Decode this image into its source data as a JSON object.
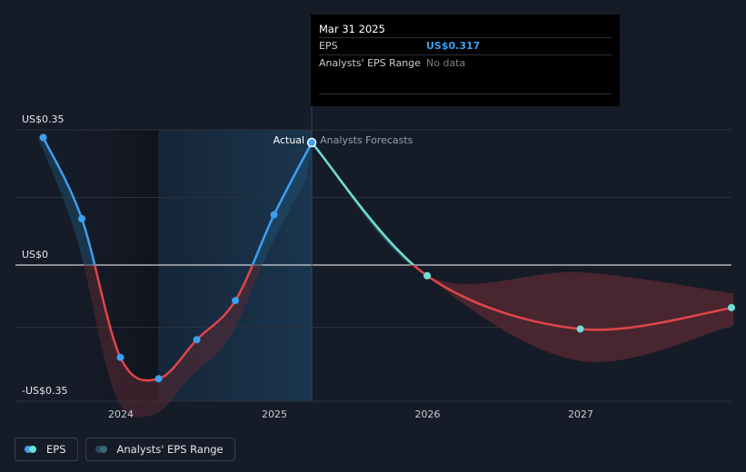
{
  "tooltip": {
    "date": "Mar 31 2025",
    "eps_label": "EPS",
    "eps_value": "US$0.317",
    "range_label": "Analysts' EPS Range",
    "range_value": "No data"
  },
  "chart_data": {
    "type": "line",
    "title": "",
    "ylim": [
      -0.35,
      0.35
    ],
    "y_tick_labels": [
      "US$0.35",
      "US$0",
      "-US$0.35"
    ],
    "x_tick_labels": [
      "2024",
      "2025",
      "2026",
      "2027"
    ],
    "divider_labels": {
      "actual": "Actual",
      "forecast": "Analysts Forecasts"
    },
    "series": [
      {
        "name": "EPS",
        "kind": "actual",
        "points": [
          {
            "x": "2023-06-30",
            "y": 0.33
          },
          {
            "x": "2023-09-30",
            "y": 0.12
          },
          {
            "x": "2023-12-31",
            "y": -0.26
          },
          {
            "x": "2024-03-31",
            "y": -0.32
          },
          {
            "x": "2024-06-30",
            "y": -0.21
          },
          {
            "x": "2024-09-30",
            "y": -0.1
          },
          {
            "x": "2024-12-31",
            "y": 0.13
          },
          {
            "x": "2025-03-31",
            "y": 0.317
          }
        ]
      },
      {
        "name": "EPS",
        "kind": "forecast",
        "points": [
          {
            "x": "2025-03-31",
            "y": 0.317
          },
          {
            "x": "2025-12-31",
            "y": -0.03
          },
          {
            "x": "2026-12-31",
            "y": -0.18
          },
          {
            "x": "2027-12-31",
            "y": -0.12
          }
        ]
      },
      {
        "name": "Analysts' EPS Range",
        "kind": "range",
        "points": [
          {
            "x": "2025-03-31",
            "low": 0.317,
            "high": 0.317
          },
          {
            "x": "2025-12-31",
            "low": -0.03,
            "high": -0.03
          },
          {
            "x": "2026-12-31",
            "low": -0.27,
            "high": -0.02
          },
          {
            "x": "2027-12-31",
            "low": -0.17,
            "high": -0.08
          }
        ]
      }
    ],
    "grid": true,
    "legend": [
      {
        "label": "EPS",
        "colors": [
          "#3d9ff0",
          "#6ee0d8"
        ]
      },
      {
        "label": "Analysts' EPS Range",
        "colors": [
          "#2a4a5e",
          "#3b6a78"
        ]
      }
    ],
    "colors": {
      "actual_line": "#3d9ff0",
      "forecast_line": "#6ee0d8",
      "negative_line": "#e0454a",
      "range_fill_positive": "#1f4d6e",
      "range_fill_negative": "#5a2a33",
      "highlight": "#1a3550"
    }
  }
}
